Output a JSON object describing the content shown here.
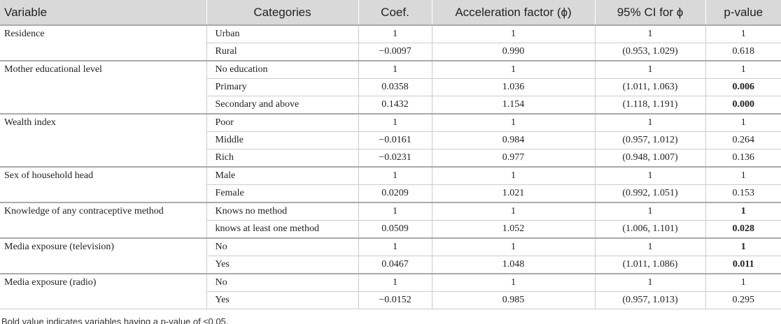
{
  "table": {
    "header": [
      "Variable",
      "Categories",
      "Coef.",
      "Acceleration factor (ϕ)",
      "95% CI for ϕ",
      "p-value"
    ],
    "groups": [
      {
        "variable": "Residence",
        "rows": [
          {
            "category": "Urban",
            "coef": "1",
            "af": "1",
            "ci": "1",
            "p": "1",
            "bold": false
          },
          {
            "category": "Rural",
            "coef": "−0.0097",
            "af": "0.990",
            "ci": "(0.953, 1.029)",
            "p": "0.618",
            "bold": false
          }
        ]
      },
      {
        "variable": "Mother educational level",
        "rows": [
          {
            "category": "No education",
            "coef": "1",
            "af": "1",
            "ci": "1",
            "p": "1",
            "bold": false
          },
          {
            "category": "Primary",
            "coef": "0.0358",
            "af": "1.036",
            "ci": "(1.011, 1.063)",
            "p": "0.006",
            "bold": true
          },
          {
            "category": "Secondary and above",
            "coef": "0.1432",
            "af": "1.154",
            "ci": "(1.118, 1.191)",
            "p": "0.000",
            "bold": true
          }
        ]
      },
      {
        "variable": "Wealth index",
        "rows": [
          {
            "category": "Poor",
            "coef": "1",
            "af": "1",
            "ci": "1",
            "p": "1",
            "bold": false
          },
          {
            "category": "Middle",
            "coef": "−0.0161",
            "af": "0.984",
            "ci": "(0.957, 1.012)",
            "p": "0.264",
            "bold": false
          },
          {
            "category": "Rich",
            "coef": "−0.0231",
            "af": "0.977",
            "ci": "(0.948, 1.007)",
            "p": "0.136",
            "bold": false
          }
        ]
      },
      {
        "variable": "Sex of household head",
        "rows": [
          {
            "category": "Male",
            "coef": "1",
            "af": "1",
            "ci": "1",
            "p": "1",
            "bold": false
          },
          {
            "category": "Female",
            "coef": "0.0209",
            "af": "1.021",
            "ci": "(0.992, 1.051)",
            "p": "0.153",
            "bold": false
          }
        ]
      },
      {
        "variable": "Knowledge of any contraceptive method",
        "rows": [
          {
            "category": "Knows no method",
            "coef": "1",
            "af": "1",
            "ci": "1",
            "p": "1",
            "bold": true
          },
          {
            "category": "knows at least one method",
            "coef": "0.0509",
            "af": "1.052",
            "ci": "(1.006, 1.101)",
            "p": "0.028",
            "bold": true
          }
        ]
      },
      {
        "variable": "Media exposure (television)",
        "rows": [
          {
            "category": "No",
            "coef": "1",
            "af": "1",
            "ci": "1",
            "p": "1",
            "bold": true
          },
          {
            "category": "Yes",
            "coef": "0.0467",
            "af": "1.048",
            "ci": "(1.011, 1.086)",
            "p": "0.011",
            "bold": true
          }
        ]
      },
      {
        "variable": "Media exposure (radio)",
        "rows": [
          {
            "category": "No",
            "coef": "1",
            "af": "1",
            "ci": "1",
            "p": "1",
            "bold": false
          },
          {
            "category": "Yes",
            "coef": "−0.0152",
            "af": "0.985",
            "ci": "(0.957, 1.013)",
            "p": "0.295",
            "bold": false
          }
        ]
      }
    ],
    "footnote": "Bold value indicates variables having a p-value of ≤0.05."
  }
}
